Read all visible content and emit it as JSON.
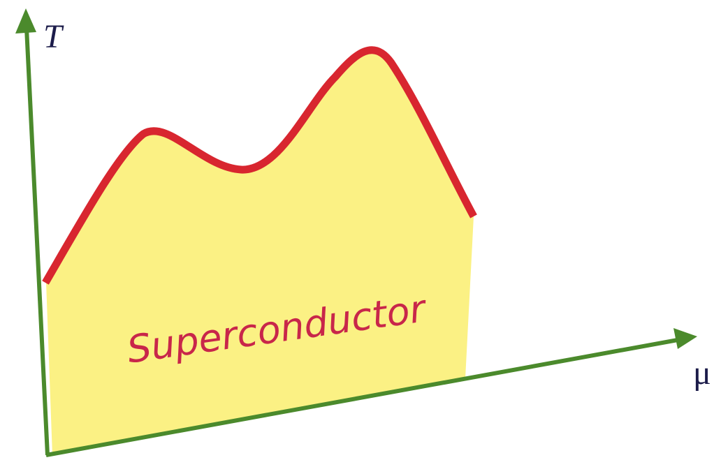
{
  "axes": {
    "y_label": "T",
    "x_label": "μ"
  },
  "region": {
    "label": "Superconductor"
  }
}
